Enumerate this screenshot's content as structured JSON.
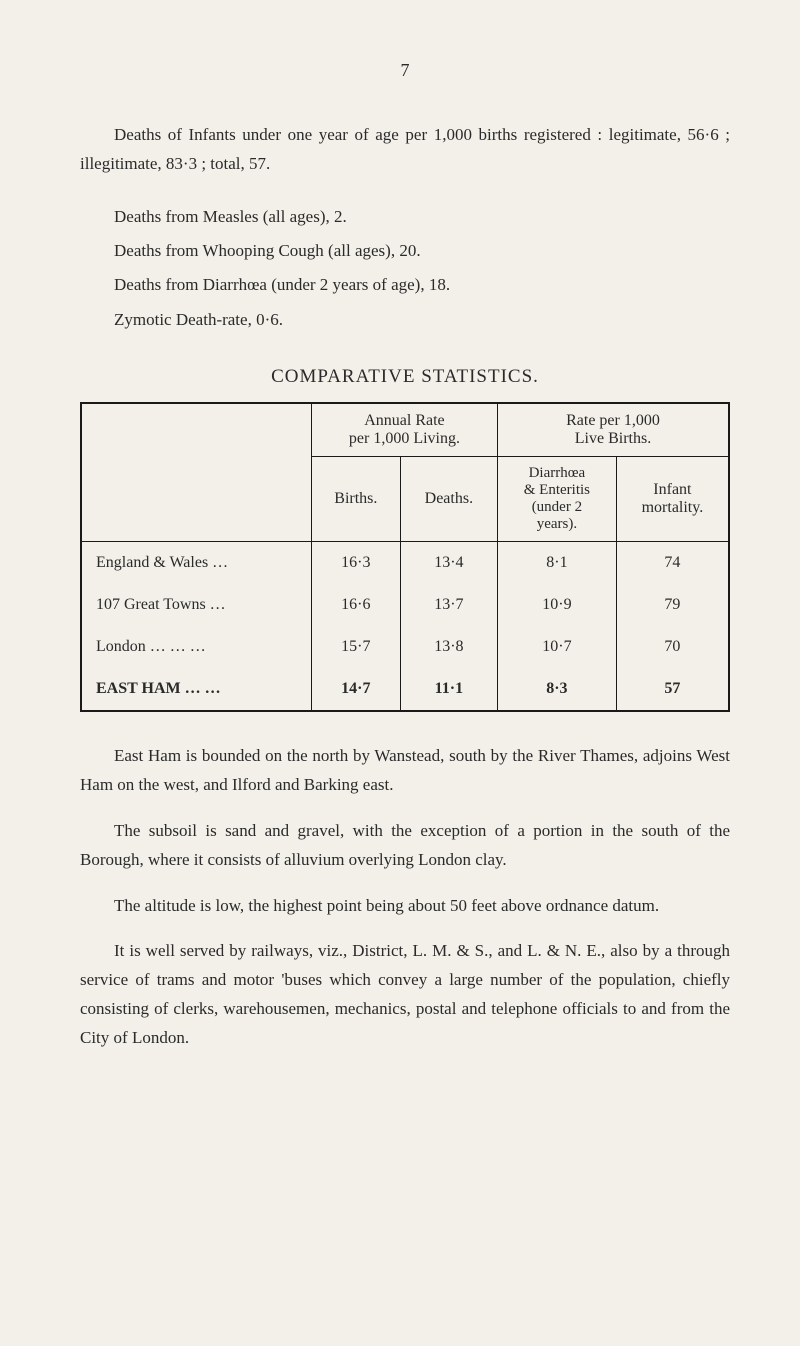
{
  "page_number": "7",
  "intro_paragraph": "Deaths of Infants under one year of age per 1,000 births registered : legitimate, 56·6 ; illegitimate, 83·3 ; total, 57.",
  "list_items": [
    "Deaths from Measles (all ages), 2.",
    "Deaths from Whooping Cough (all ages), 20.",
    "Deaths from Diarrhœa (under 2 years of age), 18.",
    "Zymotic Death-rate, 0·6."
  ],
  "section_title": "COMPARATIVE STATISTICS.",
  "table": {
    "group_header_1": "Annual Rate\nper 1,000 Living.",
    "group_header_2": "Rate per 1,000\nLive Births.",
    "col_births": "Births.",
    "col_deaths": "Deaths.",
    "col_diarrhoea": "Diarrhœa\n& Enteritis\n(under 2\nyears).",
    "col_infant": "Infant\nmortality.",
    "rows": [
      {
        "label": "England & Wales     …",
        "births": "16·3",
        "deaths": "13·4",
        "diar": "8·1",
        "infant": "74",
        "bold": false
      },
      {
        "label": "107 Great Towns       …",
        "births": "16·6",
        "deaths": "13·7",
        "diar": "10·9",
        "infant": "79",
        "bold": false
      },
      {
        "label": "London   …       …       …",
        "births": "15·7",
        "deaths": "13·8",
        "diar": "10·7",
        "infant": "70",
        "bold": false
      },
      {
        "label": "EAST HAM   …     …",
        "births": "14·7",
        "deaths": "11·1",
        "diar": "8·3",
        "infant": "57",
        "bold": true
      }
    ]
  },
  "body_paragraphs": [
    "East Ham is bounded on the north by Wanstead, south by the River Thames, adjoins West Ham on the west, and Ilford and Barking east.",
    "The subsoil is sand and gravel, with the exception of a portion in the south of the Borough, where it consists of alluvium overlying London clay.",
    "The altitude is low, the highest point being about 50 feet above ordnance datum.",
    "It is well served by railways, viz., District, L. M. & S., and L. & N. E., also by a through service of trams and motor 'buses which convey a large number of the population, chiefly consisting of clerks, warehousemen, mechanics, postal and telephone officials to and from the City of London."
  ]
}
